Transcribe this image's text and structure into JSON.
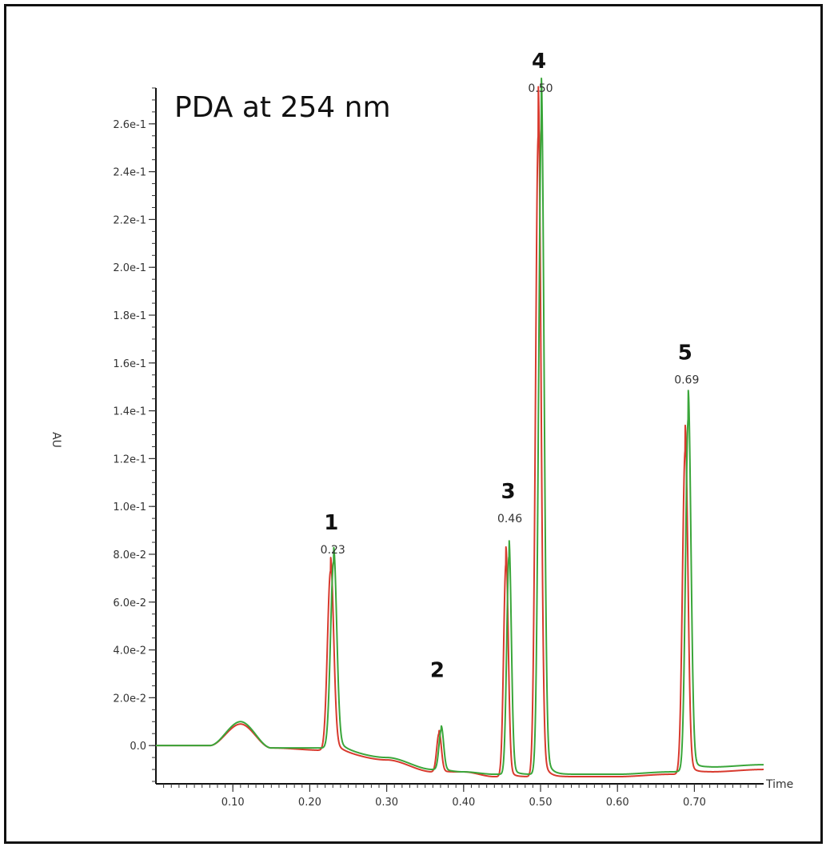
{
  "chart_data": {
    "type": "line",
    "title": "PDA at 254 nm",
    "xlabel": "Time",
    "ylabel": "AU",
    "xlim": [
      0.0,
      0.79
    ],
    "ylim": [
      -0.016,
      0.275
    ],
    "x_ticks": [
      {
        "value": 0.1,
        "label": "0.10"
      },
      {
        "value": 0.2,
        "label": "0.20"
      },
      {
        "value": 0.3,
        "label": "0.30"
      },
      {
        "value": 0.4,
        "label": "0.40"
      },
      {
        "value": 0.5,
        "label": "0.50"
      },
      {
        "value": 0.6,
        "label": "0.60"
      },
      {
        "value": 0.7,
        "label": "0.70"
      }
    ],
    "y_ticks": [
      {
        "value": 0.0,
        "label": "0.0"
      },
      {
        "value": 0.02,
        "label": "2.0e-2"
      },
      {
        "value": 0.04,
        "label": "4.0e-2"
      },
      {
        "value": 0.06,
        "label": "6.0e-2"
      },
      {
        "value": 0.08,
        "label": "8.0e-2"
      },
      {
        "value": 0.1,
        "label": "1.0e-1"
      },
      {
        "value": 0.12,
        "label": "1.2e-1"
      },
      {
        "value": 0.14,
        "label": "1.4e-1"
      },
      {
        "value": 0.16,
        "label": "1.6e-1"
      },
      {
        "value": 0.18,
        "label": "1.8e-1"
      },
      {
        "value": 0.2,
        "label": "2.0e-1"
      },
      {
        "value": 0.22,
        "label": "2.2e-1"
      },
      {
        "value": 0.24,
        "label": "2.4e-1"
      },
      {
        "value": 0.26,
        "label": "2.6e-1"
      }
    ],
    "peaks": [
      {
        "label": "1",
        "rt_label": "0.23",
        "time": 0.23,
        "height": 0.077
      },
      {
        "label": "2",
        "rt_label": "",
        "time": 0.37,
        "height": 0.017
      },
      {
        "label": "3",
        "rt_label": "0.46",
        "time": 0.46,
        "height": 0.09
      },
      {
        "label": "4",
        "rt_label": "0.50",
        "time": 0.5,
        "height": 0.27
      },
      {
        "label": "5",
        "rt_label": "0.69",
        "time": 0.69,
        "height": 0.148
      }
    ],
    "series": [
      {
        "color": "#d83a2e",
        "baseline": [
          [
            0.0,
            0.0
          ],
          [
            0.07,
            0.0
          ],
          [
            0.11,
            0.009
          ],
          [
            0.15,
            -0.001
          ],
          [
            0.22,
            -0.002
          ],
          [
            0.3,
            -0.006
          ],
          [
            0.36,
            -0.011
          ],
          [
            0.4,
            -0.011
          ],
          [
            0.44,
            -0.013
          ],
          [
            0.52,
            -0.013
          ],
          [
            0.6,
            -0.013
          ],
          [
            0.67,
            -0.012
          ],
          [
            0.72,
            -0.011
          ],
          [
            0.79,
            -0.01
          ]
        ],
        "peaks": [
          {
            "time": 0.227,
            "height": 0.075,
            "width": 0.004,
            "tail": 0.01
          },
          {
            "time": 0.368,
            "height": 0.016,
            "width": 0.003,
            "tail": 0.005
          },
          {
            "time": 0.455,
            "height": 0.089,
            "width": 0.003,
            "tail": 0.005
          },
          {
            "time": 0.497,
            "height": 0.268,
            "width": 0.0035,
            "tail": 0.006
          },
          {
            "time": 0.688,
            "height": 0.135,
            "width": 0.0035,
            "tail": 0.006
          }
        ]
      },
      {
        "color": "#3aa63a",
        "baseline": [
          [
            0.0,
            0.0
          ],
          [
            0.07,
            0.0
          ],
          [
            0.11,
            0.01
          ],
          [
            0.15,
            -0.001
          ],
          [
            0.22,
            -0.001
          ],
          [
            0.3,
            -0.005
          ],
          [
            0.36,
            -0.01
          ],
          [
            0.4,
            -0.011
          ],
          [
            0.44,
            -0.012
          ],
          [
            0.52,
            -0.012
          ],
          [
            0.6,
            -0.012
          ],
          [
            0.67,
            -0.011
          ],
          [
            0.72,
            -0.009
          ],
          [
            0.79,
            -0.008
          ]
        ],
        "peaks": [
          {
            "time": 0.231,
            "height": 0.078,
            "width": 0.004,
            "tail": 0.01
          },
          {
            "time": 0.371,
            "height": 0.017,
            "width": 0.003,
            "tail": 0.005
          },
          {
            "time": 0.459,
            "height": 0.091,
            "width": 0.003,
            "tail": 0.005
          },
          {
            "time": 0.501,
            "height": 0.27,
            "width": 0.0035,
            "tail": 0.006
          },
          {
            "time": 0.692,
            "height": 0.147,
            "width": 0.0035,
            "tail": 0.006
          }
        ]
      }
    ]
  }
}
